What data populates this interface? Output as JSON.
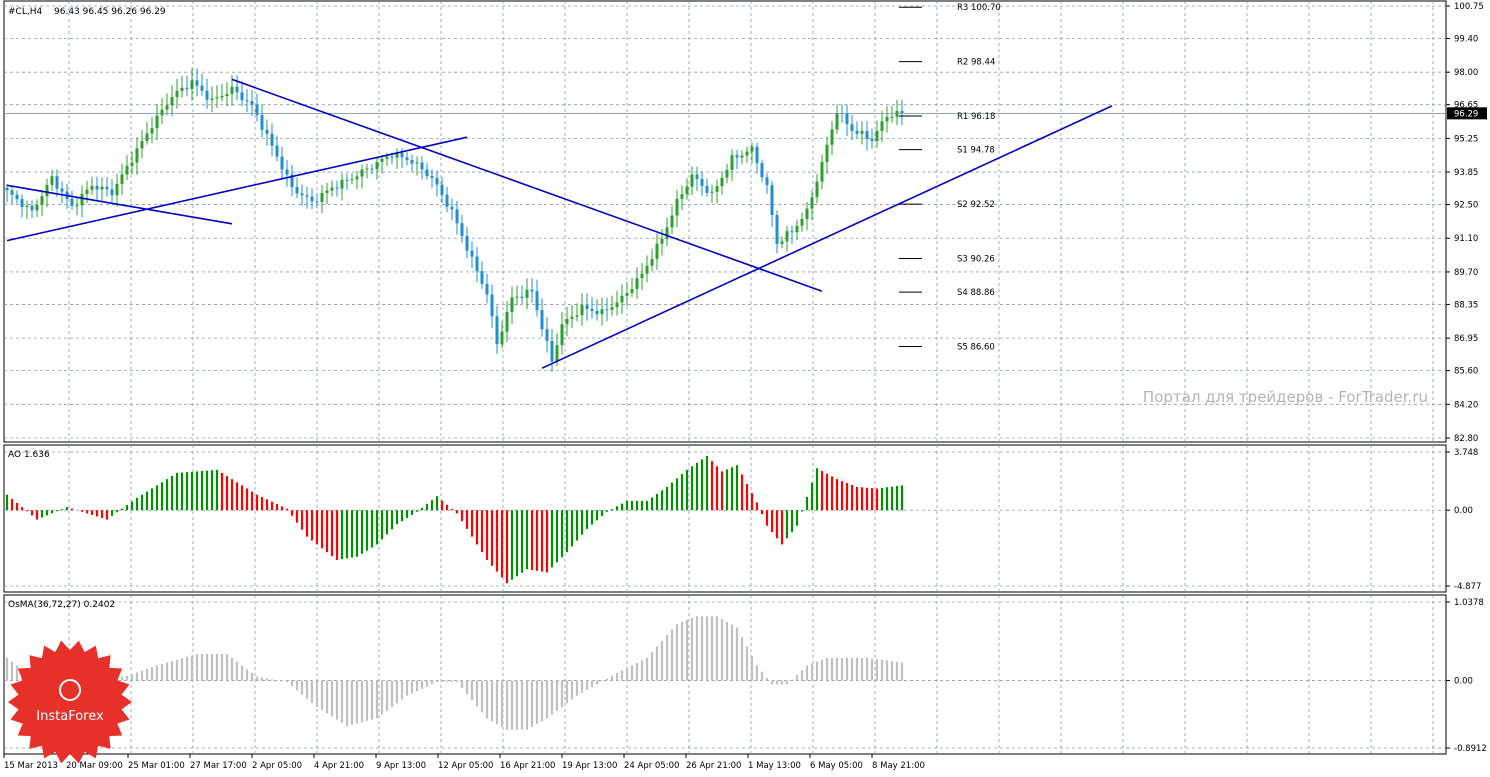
{
  "chart_data": [
    {
      "type": "candlestick",
      "title": "#CL,H4",
      "ohlc_header": "96.43 96.45 96.26 96.29",
      "last_price": "96.29",
      "last_price_value": 96.29,
      "ylim": [
        82.8,
        100.75
      ],
      "y_ticks": [
        "100.75",
        "99.40",
        "98.00",
        "96.65",
        "95.25",
        "93.85",
        "92.50",
        "91.10",
        "89.70",
        "88.35",
        "86.95",
        "85.60",
        "84.20",
        "82.80"
      ],
      "x_ticks": [
        "15 Mar 2013",
        "20 Mar 09:00",
        "25 Mar 01:00",
        "27 Mar 17:00",
        "2 Apr 05:00",
        "4 Apr 21:00",
        "9 Apr 13:00",
        "12 Apr 05:00",
        "16 Apr 21:00",
        "19 Apr 13:00",
        "24 Apr 05:00",
        "26 Apr 21:00",
        "1 May 13:00",
        "6 May 05:00",
        "8 May 21:00"
      ],
      "price_path": [
        [
          0,
          93.2
        ],
        [
          6,
          92.2
        ],
        [
          10,
          93.6
        ],
        [
          14,
          92.4
        ],
        [
          18,
          93.3
        ],
        [
          22,
          93.0
        ],
        [
          26,
          94.4
        ],
        [
          30,
          95.8
        ],
        [
          34,
          97.0
        ],
        [
          38,
          97.6
        ],
        [
          42,
          96.8
        ],
        [
          46,
          97.3
        ],
        [
          50,
          96.6
        ],
        [
          55,
          94.5
        ],
        [
          58,
          93.2
        ],
        [
          62,
          92.6
        ],
        [
          66,
          93.2
        ],
        [
          70,
          93.6
        ],
        [
          74,
          94.1
        ],
        [
          78,
          94.6
        ],
        [
          82,
          94.3
        ],
        [
          86,
          93.6
        ],
        [
          90,
          92.2
        ],
        [
          94,
          90.2
        ],
        [
          97,
          88.8
        ],
        [
          99,
          86.7
        ],
        [
          102,
          88.6
        ],
        [
          106,
          88.9
        ],
        [
          108,
          87.4
        ],
        [
          110,
          86.0
        ],
        [
          112,
          87.5
        ],
        [
          116,
          88.2
        ],
        [
          120,
          88.0
        ],
        [
          124,
          88.6
        ],
        [
          128,
          89.6
        ],
        [
          132,
          91.1
        ],
        [
          135,
          92.6
        ],
        [
          138,
          93.7
        ],
        [
          142,
          92.9
        ],
        [
          146,
          94.4
        ],
        [
          150,
          94.8
        ],
        [
          153,
          93.2
        ],
        [
          155,
          90.9
        ],
        [
          158,
          91.4
        ],
        [
          161,
          92.2
        ],
        [
          164,
          94.2
        ],
        [
          167,
          96.4
        ],
        [
          170,
          95.6
        ],
        [
          174,
          95.2
        ],
        [
          177,
          96.2
        ],
        [
          180,
          96.3
        ]
      ],
      "pivot_levels": [
        {
          "label": "R3 100.70",
          "value": 100.7
        },
        {
          "label": "R2 98.44",
          "value": 98.44
        },
        {
          "label": "R1 96.18",
          "value": 96.18
        },
        {
          "label": "S1 94.78",
          "value": 94.78
        },
        {
          "label": "S2 92.52",
          "value": 92.52
        },
        {
          "label": "S3 90.26",
          "value": 90.26
        },
        {
          "label": "S4 88.86",
          "value": 88.86
        },
        {
          "label": "S5 86.60",
          "value": 86.6
        }
      ],
      "trendlines": [
        {
          "name": "falling-short",
          "from": [
            0,
            93.3
          ],
          "to": [
            45,
            91.7
          ]
        },
        {
          "name": "rising-long",
          "from": [
            0,
            91.0
          ],
          "to": [
            92,
            95.3
          ]
        },
        {
          "name": "falling-main",
          "from": [
            45,
            97.7
          ],
          "to": [
            163,
            88.9
          ]
        },
        {
          "name": "rising-main",
          "from": [
            107,
            85.7
          ],
          "to": [
            221,
            96.6
          ]
        }
      ],
      "watermark": "Портал для трейдеров - ForTrader.ru",
      "colors": {
        "bull": "#2ca02c",
        "bear": "#1f8fd0",
        "trend": "#0000c8",
        "price_line": "#6f8fb0"
      }
    },
    {
      "type": "histogram",
      "title": "AO 1.636",
      "ylim": [
        -4.877,
        3.748
      ],
      "y_ticks": [
        "3.748",
        "0.00",
        "-4.877"
      ],
      "path": [
        [
          0,
          1.0
        ],
        [
          6,
          -0.6
        ],
        [
          12,
          0.2
        ],
        [
          20,
          -0.6
        ],
        [
          26,
          0.8
        ],
        [
          34,
          2.4
        ],
        [
          42,
          2.6
        ],
        [
          50,
          1.0
        ],
        [
          56,
          0.1
        ],
        [
          60,
          -1.7
        ],
        [
          66,
          -3.2
        ],
        [
          70,
          -3.0
        ],
        [
          74,
          -2.2
        ],
        [
          78,
          -0.9
        ],
        [
          82,
          -0.1
        ],
        [
          86,
          0.9
        ],
        [
          90,
          -0.2
        ],
        [
          96,
          -3.2
        ],
        [
          100,
          -4.7
        ],
        [
          104,
          -3.8
        ],
        [
          108,
          -4.0
        ],
        [
          112,
          -2.7
        ],
        [
          116,
          -1.2
        ],
        [
          120,
          -0.1
        ],
        [
          124,
          0.6
        ],
        [
          128,
          0.6
        ],
        [
          132,
          1.5
        ],
        [
          136,
          2.6
        ],
        [
          140,
          3.5
        ],
        [
          143,
          2.5
        ],
        [
          146,
          2.9
        ],
        [
          148,
          1.7
        ],
        [
          150,
          0.5
        ],
        [
          152,
          -1.0
        ],
        [
          155,
          -2.2
        ],
        [
          158,
          -1.0
        ],
        [
          162,
          2.7
        ],
        [
          166,
          2.0
        ],
        [
          170,
          1.5
        ],
        [
          174,
          1.4
        ],
        [
          179,
          1.6
        ]
      ],
      "colors": {
        "up": "#009100",
        "down": "#ff0000"
      }
    },
    {
      "type": "histogram",
      "title": "OsMA(36,72,27) 0.2402",
      "ylim": [
        -0.8912,
        1.0378
      ],
      "y_ticks": [
        "1.0378",
        "0.00",
        "-0.8912"
      ],
      "path": [
        [
          0,
          0.3
        ],
        [
          5,
          0.05
        ],
        [
          9,
          -0.02
        ],
        [
          14,
          -0.02
        ],
        [
          18,
          0.02
        ],
        [
          24,
          0.06
        ],
        [
          30,
          0.2
        ],
        [
          38,
          0.35
        ],
        [
          44,
          0.35
        ],
        [
          50,
          0.05
        ],
        [
          56,
          -0.02
        ],
        [
          62,
          -0.35
        ],
        [
          68,
          -0.6
        ],
        [
          74,
          -0.5
        ],
        [
          80,
          -0.2
        ],
        [
          86,
          -0.02
        ],
        [
          90,
          -0.02
        ],
        [
          96,
          -0.5
        ],
        [
          100,
          -0.65
        ],
        [
          104,
          -0.65
        ],
        [
          108,
          -0.5
        ],
        [
          114,
          -0.2
        ],
        [
          118,
          -0.05
        ],
        [
          122,
          0.1
        ],
        [
          128,
          0.3
        ],
        [
          134,
          0.75
        ],
        [
          138,
          0.85
        ],
        [
          142,
          0.85
        ],
        [
          146,
          0.7
        ],
        [
          150,
          0.2
        ],
        [
          153,
          -0.05
        ],
        [
          156,
          -0.05
        ],
        [
          160,
          0.2
        ],
        [
          164,
          0.3
        ],
        [
          168,
          0.3
        ],
        [
          172,
          0.3
        ],
        [
          179,
          0.24
        ]
      ],
      "colors": {
        "bar": "#c0c0c0"
      }
    }
  ],
  "logo": {
    "text": "InstaForex",
    "color": "#e8302a"
  }
}
